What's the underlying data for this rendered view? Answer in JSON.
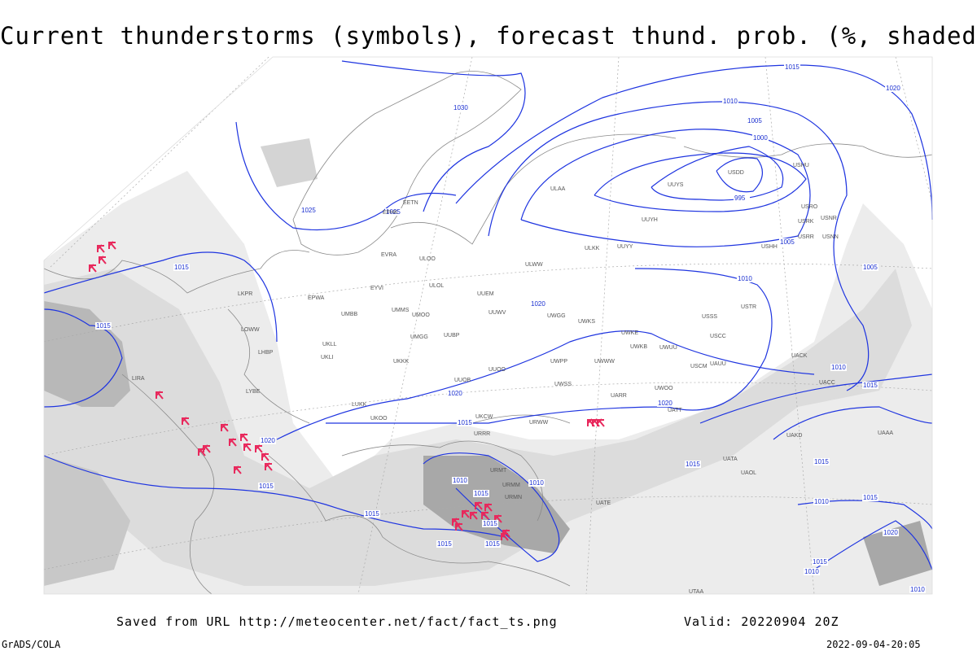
{
  "header": {
    "title": "Current thunderstorms (symbols), forecast thund. prob. (%, shaded)"
  },
  "map": {
    "isobar_labels": [
      1030,
      1025,
      1025,
      1015,
      1015,
      1020,
      1015,
      1015,
      1020,
      1020,
      1015,
      1020,
      1010,
      1005,
      1000,
      995,
      1005,
      1010,
      1005,
      1010,
      1015,
      1015,
      1015,
      1010,
      1015,
      1020,
      1015,
      1010,
      1015,
      1020,
      1010,
      1015,
      1010,
      1015,
      1015,
      1015,
      1010
    ],
    "stations": [
      "ULAA",
      "UUYS",
      "USDD",
      "USHU",
      "UUYH",
      "USRO",
      "USRK",
      "USNR",
      "USRR",
      "USNN",
      "USHH",
      "ULKK",
      "UUYY",
      "ULWW",
      "EVRA",
      "ULOO",
      "EETN",
      "EFHK",
      "EYVI",
      "UMMS",
      "UMOO",
      "UUEM",
      "ULOL",
      "EPWA",
      "UMBB",
      "UUWV",
      "UWGG",
      "UWKS",
      "UKLL",
      "UKLI",
      "UMGG",
      "UUBP",
      "UWKE",
      "UWKB",
      "UWUU",
      "USSS",
      "USTR",
      "USCC",
      "UACC",
      "UACK",
      "UAUU",
      "USCM",
      "UWPP",
      "UWWW",
      "UKKK",
      "UUOO",
      "UUOB",
      "UWSS",
      "UWOO",
      "UARR",
      "UATT",
      "URWW",
      "LIRA",
      "LYBE",
      "LKPR",
      "LOWW",
      "LHBP",
      "LUKK",
      "UKOO",
      "UKCW",
      "URRR",
      "URMT",
      "URMM",
      "URMN",
      "UATE",
      "UAOL",
      "UATA",
      "UTAA",
      "UAKD",
      "UAAA"
    ]
  },
  "footer": {
    "source": "Saved from URL  http://meteocenter.net/fact/fact_ts.png",
    "valid": "Valid: 20220904 20Z",
    "credit": "GrADS/COLA",
    "timestamp": "2022-09-04-20:05"
  }
}
